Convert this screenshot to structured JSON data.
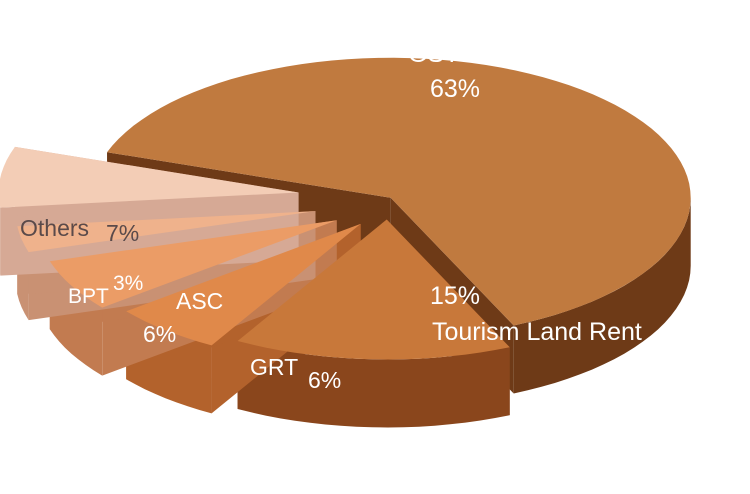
{
  "chart_data": {
    "type": "pie",
    "style": "3d-exploded",
    "slices": [
      {
        "label": "GST",
        "value_text": "63%",
        "value": 63,
        "color": "#c07a3f",
        "side_color": "#6e3a17",
        "text_color": "#ffffff"
      },
      {
        "label": "Tourism Land Rent",
        "value_text": "15%",
        "value": 15,
        "color": "#c8783a",
        "side_color": "#8a461c",
        "text_color": "#ffffff"
      },
      {
        "label": "GRT",
        "value_text": "6%",
        "value": 6,
        "color": "#e0894a",
        "side_color": "#b3622c",
        "text_color": "#ffffff"
      },
      {
        "label": "ASC",
        "value_text": "6%",
        "value": 6,
        "color": "#eb9c66",
        "side_color": "#c27b50",
        "text_color": "#ffffff"
      },
      {
        "label": "BPT",
        "value_text": "3%",
        "value": 3,
        "color": "#efb28c",
        "side_color": "#c99173",
        "text_color": "#ffffff"
      },
      {
        "label": "Others",
        "value_text": "7%",
        "value": 7,
        "color": "#f3cdb6",
        "side_color": "#d6a995",
        "text_color": "#5a4a4a"
      }
    ]
  }
}
